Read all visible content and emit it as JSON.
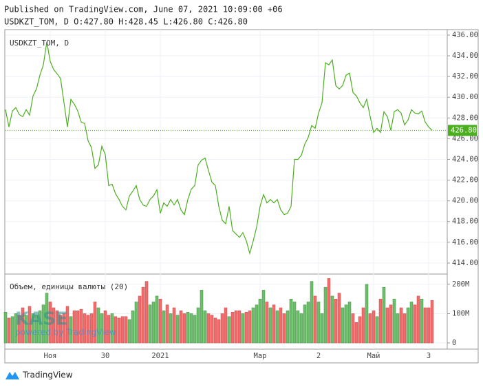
{
  "header": {
    "published": "Published on TradingView.com, June 07, 2021 10:09:00 +06",
    "quote": "USDKZT_TOM, D O:427.80 H:428.45 L:426.80 C:426.80"
  },
  "chart_data": [
    {
      "type": "line",
      "legend": "USDKZT_TOM, D",
      "categories": [
        null,
        null,
        null,
        null,
        null,
        null,
        null,
        null,
        null,
        null,
        null,
        null,
        null,
        "Ноя",
        null,
        null,
        null,
        null,
        null,
        null,
        null,
        null,
        null,
        null,
        null,
        null,
        null,
        null,
        null,
        "30",
        null,
        null,
        null,
        null,
        null,
        null,
        null,
        null,
        null,
        null,
        null,
        null,
        null,
        null,
        null,
        "2021",
        null,
        null,
        null,
        null,
        null,
        null,
        null,
        null,
        null,
        null,
        null,
        null,
        null,
        null,
        null,
        null,
        null,
        null,
        null,
        null,
        null,
        null,
        null,
        null,
        null,
        null,
        null,
        null,
        "Мар",
        null,
        null,
        null,
        null,
        null,
        null,
        null,
        null,
        null,
        null,
        null,
        null,
        null,
        null,
        null,
        null,
        "2",
        null,
        null,
        null,
        null,
        null,
        null,
        null,
        null,
        null,
        null,
        null,
        null,
        null,
        null,
        null,
        "Май",
        null,
        null,
        null,
        null,
        null,
        null,
        null,
        null,
        null,
        null,
        null,
        null,
        null,
        null,
        null,
        "3",
        null
      ],
      "series": [
        {
          "name": "USDKZT_TOM, D",
          "color": "#4caf1f",
          "values": [
            428.8,
            427.13,
            428.67,
            429,
            428.33,
            428.13,
            428.8,
            428.27,
            430.13,
            430.8,
            432.13,
            433.13,
            435.33,
            433.47,
            432.67,
            432.27,
            431.8,
            429.47,
            427.13,
            429.8,
            429.33,
            428.67,
            427.6,
            427.47,
            425.8,
            425.13,
            423.13,
            423.47,
            425.27,
            424.47,
            421.47,
            421.6,
            420.67,
            420.13,
            419.47,
            419.13,
            420.47,
            420.93,
            421.47,
            420.13,
            419.6,
            419.47,
            420.13,
            420.47,
            421.07,
            418.8,
            419.8,
            419.47,
            420.13,
            419.6,
            420.13,
            419.13,
            418.67,
            420.13,
            421.13,
            421.47,
            423.47,
            423.93,
            424.13,
            422.93,
            421.8,
            421.47,
            419.47,
            418.13,
            417.8,
            419.47,
            417.13,
            416.8,
            416.47,
            416.93,
            416.13,
            414.93,
            416.13,
            417.47,
            419.47,
            420.6,
            419.8,
            420.13,
            419.8,
            420.13,
            419.13,
            418.67,
            418.8,
            419.47,
            424,
            424,
            424.4,
            425.47,
            426.13,
            427.27,
            427,
            428.47,
            429.47,
            433.33,
            433.13,
            433.6,
            431.13,
            430.8,
            431.13,
            432.13,
            432.33,
            430.47,
            430.13,
            429.47,
            429,
            429.8,
            428.13,
            426.6,
            427,
            426.6,
            428.6,
            428.13,
            426.8,
            428.6,
            428.8,
            428.47,
            427.33,
            427.8,
            428.8,
            428.47,
            428.4,
            428.67,
            427.6,
            427.13,
            426.8
          ]
        }
      ],
      "ylim": [
        412.93,
        436.53
      ],
      "yticks": [
        {
          "value": 414,
          "label": "414.00"
        },
        {
          "value": 416,
          "label": "416.00"
        },
        {
          "value": 418,
          "label": "418.00"
        },
        {
          "value": 420,
          "label": "420.00"
        },
        {
          "value": 422,
          "label": "422.00"
        },
        {
          "value": 424,
          "label": "424.00"
        },
        {
          "value": 426,
          "label": "426.00"
        },
        {
          "value": 428,
          "label": "428.00"
        },
        {
          "value": 430,
          "label": "430.00"
        },
        {
          "value": 432,
          "label": "432.00"
        },
        {
          "value": 434,
          "label": "434.00"
        },
        {
          "value": 436,
          "label": "436.00"
        }
      ],
      "grid": true,
      "last_price": {
        "value": 426.8,
        "label": "426.80"
      }
    },
    {
      "type": "bar",
      "series": [
        {
          "name": "Объем, единицы валюты (20)",
          "up_color": "#6cc06c",
          "down_color": "#f26c6c",
          "values": [
            105000000,
            85000000,
            90000000,
            100000000,
            95000000,
            120000000,
            95000000,
            125000000,
            100000000,
            95000000,
            110000000,
            130000000,
            170000000,
            140000000,
            120000000,
            110000000,
            95000000,
            100000000,
            125000000,
            90000000,
            110000000,
            110000000,
            115000000,
            100000000,
            95000000,
            100000000,
            140000000,
            120000000,
            100000000,
            110000000,
            95000000,
            100000000,
            90000000,
            85000000,
            90000000,
            90000000,
            80000000,
            110000000,
            140000000,
            160000000,
            190000000,
            210000000,
            130000000,
            140000000,
            160000000,
            150000000,
            110000000,
            130000000,
            100000000,
            120000000,
            95000000,
            110000000,
            100000000,
            105000000,
            100000000,
            95000000,
            120000000,
            180000000,
            110000000,
            100000000,
            95000000,
            85000000,
            80000000,
            100000000,
            120000000,
            90000000,
            105000000,
            110000000,
            110000000,
            100000000,
            105000000,
            110000000,
            120000000,
            130000000,
            150000000,
            180000000,
            140000000,
            120000000,
            130000000,
            110000000,
            120000000,
            100000000,
            110000000,
            150000000,
            140000000,
            110000000,
            100000000,
            130000000,
            140000000,
            210000000,
            160000000,
            140000000,
            100000000,
            190000000,
            220000000,
            160000000,
            150000000,
            170000000,
            120000000,
            130000000,
            140000000,
            100000000,
            70000000,
            90000000,
            120000000,
            200000000,
            100000000,
            110000000,
            90000000,
            150000000,
            190000000,
            120000000,
            130000000,
            150000000,
            100000000,
            120000000,
            100000000,
            120000000,
            140000000,
            130000000,
            160000000,
            150000000,
            120000000,
            120000000,
            145000000
          ]
        }
      ],
      "ylim": [
        -21000000,
        235000000
      ],
      "yticks": [
        0,
        {
          "value": 100000000,
          "label": "100M"
        },
        {
          "value": 200000000,
          "label": "200M"
        }
      ],
      "grid": true
    }
  ],
  "watermark": {
    "logo": "KASE",
    "text": "powered by TradingView"
  },
  "footer": {
    "brand": "TradingView"
  }
}
